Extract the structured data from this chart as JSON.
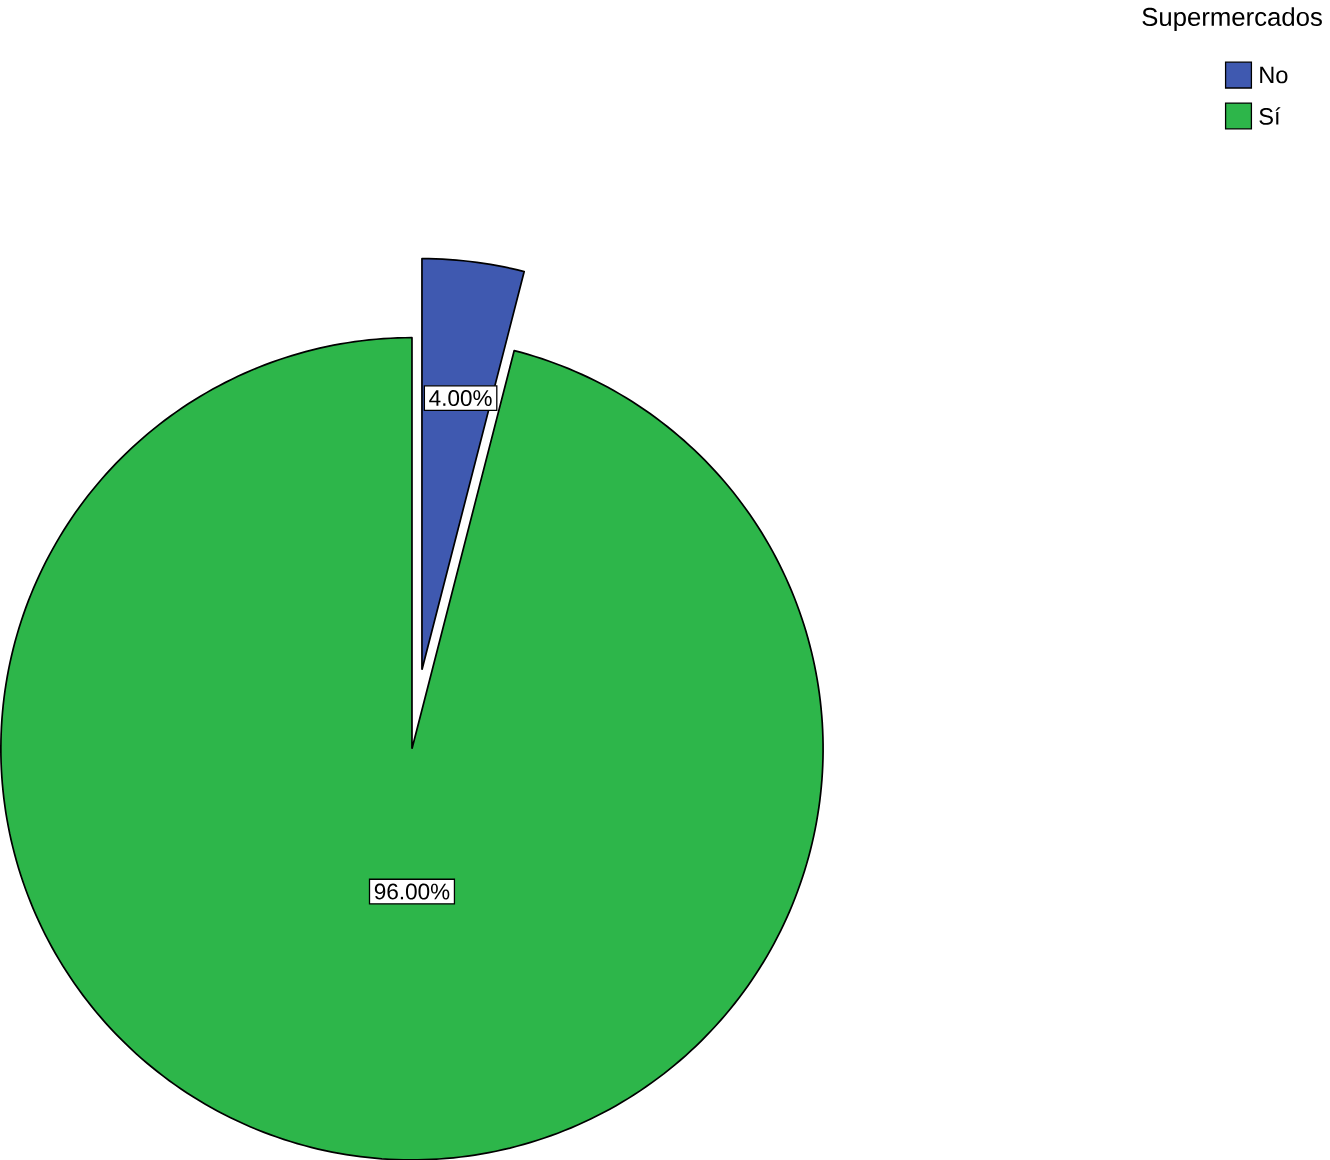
{
  "chart_data": {
    "type": "pie",
    "legend_title": "Supermercados",
    "categories": [
      "No",
      "Sí"
    ],
    "values": [
      4,
      96
    ],
    "colors": [
      "#3f59b0",
      "#2db64a"
    ],
    "value_labels": [
      "4.00%",
      "96.00%"
    ],
    "legend": "top right"
  }
}
